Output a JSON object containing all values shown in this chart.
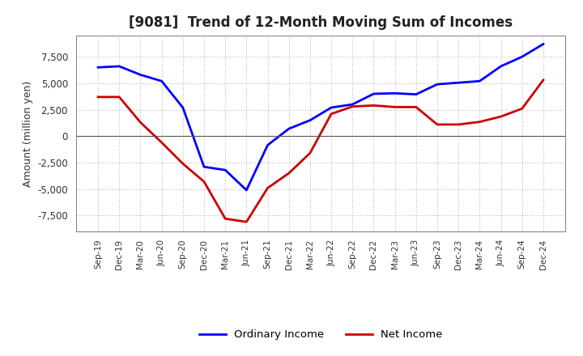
{
  "title": "[9081]  Trend of 12-Month Moving Sum of Incomes",
  "ylabel": "Amount (million yen)",
  "x_labels": [
    "Sep-19",
    "Dec-19",
    "Mar-20",
    "Jun-20",
    "Sep-20",
    "Dec-20",
    "Mar-21",
    "Jun-21",
    "Sep-21",
    "Dec-21",
    "Mar-22",
    "Jun-22",
    "Sep-22",
    "Dec-22",
    "Mar-23",
    "Jun-23",
    "Sep-23",
    "Dec-23",
    "Mar-24",
    "Jun-24",
    "Sep-24",
    "Dec-24"
  ],
  "ordinary_income": [
    6500,
    6600,
    5800,
    5200,
    2700,
    -2900,
    -3200,
    -5100,
    -850,
    700,
    1500,
    2700,
    3000,
    4000,
    4050,
    3950,
    4900,
    5050,
    5200,
    6600,
    7500,
    8700
  ],
  "net_income": [
    3700,
    3700,
    1300,
    -600,
    -2600,
    -4300,
    -7800,
    -8100,
    -4900,
    -3500,
    -1600,
    2100,
    2800,
    2900,
    2750,
    2750,
    1100,
    1100,
    1350,
    1850,
    2600,
    5300
  ],
  "ordinary_color": "#0000FF",
  "net_color": "#CC0000",
  "ylim_min": -9000,
  "ylim_max": 9500,
  "yticks": [
    -7500,
    -5000,
    -2500,
    0,
    2500,
    5000,
    7500
  ],
  "background_color": "#FFFFFF",
  "grid_color": "#BBBBBB"
}
